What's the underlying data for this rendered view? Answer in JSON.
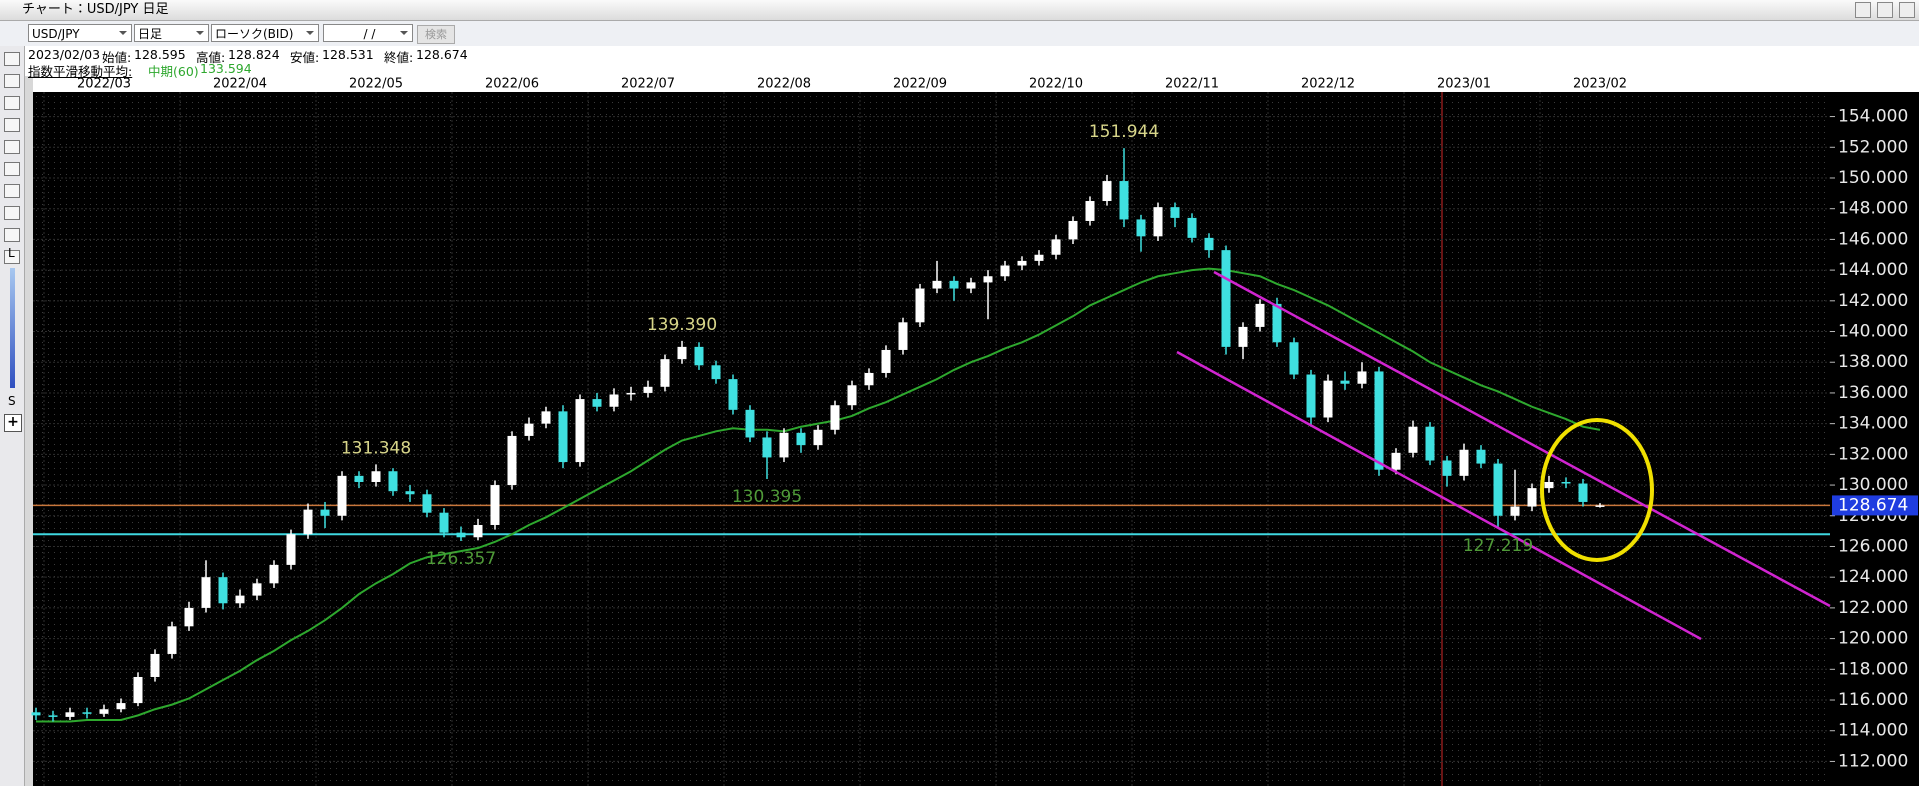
{
  "window": {
    "title": "チャート：USD/JPY 日足",
    "symbol": "USD/JPY",
    "period": "日足",
    "chart_type": "ローソク(BID)",
    "date_field": "/ /",
    "search": "検索"
  },
  "info": {
    "date": "2023/02/03",
    "open": "始値:",
    "high": "高値:",
    "low": "安値:",
    "close": "終値:",
    "ma_title": "指数平滑移動平均:"
  },
  "toolbar": {
    "long": "L",
    "short": "S"
  },
  "chart_data": {
    "type": "candlestick",
    "categories": [
      null,
      null,
      null,
      null,
      "2022/03",
      null,
      null,
      null,
      null,
      null,
      null,
      null,
      "2022/04",
      null,
      null,
      null,
      null,
      null,
      null,
      null,
      "2022/05",
      null,
      null,
      null,
      null,
      null,
      null,
      null,
      "2022/06",
      null,
      null,
      null,
      null,
      null,
      null,
      null,
      "2022/07",
      null,
      null,
      null,
      null,
      null,
      null,
      null,
      "2022/08",
      null,
      null,
      null,
      null,
      null,
      null,
      null,
      "2022/09",
      null,
      null,
      null,
      null,
      null,
      null,
      null,
      "2022/10",
      null,
      null,
      null,
      null,
      null,
      null,
      null,
      "2022/11",
      null,
      null,
      null,
      null,
      null,
      null,
      null,
      "2022/12",
      null,
      null,
      null,
      null,
      null,
      null,
      null,
      "2023/01",
      null,
      null,
      null,
      null,
      null,
      null,
      null,
      "2023/02"
    ],
    "ohlc": {
      "up_color": "#ffffff",
      "down_color": "#3fe0e0",
      "open": [
        115.2,
        115.0,
        114.9,
        115.2,
        115.1,
        115.4,
        115.8,
        117.5,
        119.0,
        120.8,
        122.0,
        124.0,
        122.3,
        122.8,
        123.6,
        124.8,
        126.8,
        128.4,
        128.0,
        130.6,
        130.2,
        130.9,
        129.6,
        129.4,
        128.2,
        126.9,
        126.6,
        127.4,
        130.0,
        133.2,
        134.0,
        134.8,
        131.5,
        135.6,
        135.1,
        135.9,
        136.0,
        136.4,
        138.2,
        139.0,
        137.8,
        136.9,
        134.9,
        133.1,
        131.8,
        133.4,
        132.6,
        133.6,
        135.2,
        136.5,
        137.3,
        138.8,
        140.6,
        142.8,
        143.3,
        142.8,
        143.2,
        143.6,
        144.3,
        144.6,
        145.0,
        146.0,
        147.2,
        148.5,
        149.8,
        147.3,
        146.2,
        148.1,
        147.4,
        146.1,
        145.3,
        139.0,
        140.3,
        141.8,
        139.3,
        137.2,
        134.4,
        136.8,
        136.6,
        137.4,
        131.0,
        132.1,
        133.8,
        131.6,
        130.6,
        132.3,
        131.4,
        128.0,
        128.6,
        129.8,
        130.2,
        130.1,
        128.595
      ],
      "high": [
        115.5,
        115.3,
        115.5,
        115.5,
        115.7,
        116.1,
        117.8,
        119.3,
        121.1,
        122.4,
        125.1,
        124.3,
        123.2,
        123.9,
        125.1,
        127.1,
        128.8,
        128.9,
        130.9,
        130.9,
        131.348,
        131.1,
        130.0,
        129.7,
        128.5,
        127.3,
        127.8,
        130.3,
        133.5,
        134.4,
        135.1,
        135.2,
        135.9,
        136.0,
        136.3,
        136.4,
        136.8,
        138.5,
        139.39,
        139.3,
        138.1,
        137.2,
        135.2,
        133.5,
        133.7,
        133.7,
        133.9,
        135.5,
        136.8,
        137.6,
        139.1,
        140.9,
        143.1,
        144.6,
        143.6,
        143.5,
        144.0,
        144.6,
        144.9,
        145.3,
        146.3,
        147.5,
        148.8,
        150.2,
        151.944,
        147.6,
        148.4,
        148.4,
        147.7,
        146.4,
        145.6,
        140.6,
        142.1,
        142.2,
        139.6,
        137.5,
        137.2,
        137.4,
        138.0,
        137.7,
        132.4,
        134.2,
        134.1,
        131.9,
        132.7,
        132.6,
        131.7,
        131.0,
        130.1,
        130.6,
        130.5,
        130.4,
        128.824
      ],
      "low": [
        114.7,
        114.6,
        114.7,
        114.8,
        114.9,
        115.2,
        115.6,
        117.2,
        118.7,
        120.5,
        121.7,
        121.9,
        122.0,
        122.5,
        123.3,
        124.5,
        126.5,
        127.2,
        127.7,
        129.8,
        129.9,
        129.3,
        128.9,
        127.9,
        126.6,
        126.357,
        126.4,
        127.1,
        129.7,
        132.9,
        133.7,
        131.1,
        131.2,
        134.8,
        134.8,
        135.5,
        135.7,
        136.1,
        137.9,
        137.5,
        136.6,
        134.6,
        132.8,
        130.395,
        131.5,
        132.1,
        132.3,
        133.3,
        134.9,
        136.2,
        137.0,
        138.5,
        140.3,
        142.5,
        142.0,
        142.5,
        140.8,
        143.3,
        144.0,
        144.3,
        144.7,
        145.7,
        146.9,
        148.2,
        146.8,
        145.2,
        145.9,
        146.8,
        145.8,
        144.8,
        138.5,
        138.2,
        140.0,
        139.0,
        136.9,
        133.8,
        134.1,
        136.2,
        136.3,
        130.6,
        130.7,
        131.8,
        131.3,
        129.9,
        130.3,
        131.1,
        127.219,
        127.7,
        128.3,
        129.5,
        129.8,
        128.6,
        128.531
      ],
      "close": [
        115.0,
        114.9,
        115.2,
        115.1,
        115.4,
        115.8,
        117.5,
        119.0,
        120.8,
        122.0,
        124.0,
        122.3,
        122.8,
        123.6,
        124.8,
        126.8,
        128.4,
        128.0,
        130.6,
        130.2,
        130.9,
        129.6,
        129.4,
        128.2,
        126.9,
        126.6,
        127.4,
        130.0,
        133.2,
        134.0,
        134.8,
        131.5,
        135.6,
        135.1,
        135.9,
        136.0,
        136.4,
        138.2,
        139.0,
        137.8,
        136.9,
        134.9,
        133.1,
        131.8,
        133.4,
        132.6,
        133.6,
        135.2,
        136.5,
        137.3,
        138.8,
        140.6,
        142.8,
        143.3,
        142.8,
        143.2,
        143.6,
        144.3,
        144.6,
        145.0,
        146.0,
        147.2,
        148.5,
        149.8,
        147.3,
        146.2,
        148.1,
        147.4,
        146.1,
        145.3,
        139.0,
        140.3,
        141.8,
        139.3,
        137.2,
        134.4,
        136.8,
        136.6,
        137.4,
        131.0,
        132.1,
        133.8,
        131.6,
        130.6,
        132.3,
        131.4,
        128.0,
        128.6,
        129.8,
        130.2,
        130.1,
        128.9,
        128.674
      ]
    },
    "series": [
      {
        "name": "中期(60)",
        "color": "#2ea82e",
        "values": [
          114.6,
          114.6,
          114.6,
          114.7,
          114.7,
          114.7,
          115.0,
          115.4,
          115.7,
          116.1,
          116.7,
          117.3,
          117.9,
          118.6,
          119.2,
          119.9,
          120.5,
          121.2,
          122.0,
          122.9,
          123.6,
          124.2,
          124.9,
          125.3,
          125.5,
          125.7,
          125.9,
          126.3,
          126.8,
          127.4,
          127.9,
          128.5,
          129.1,
          129.7,
          130.3,
          130.9,
          131.6,
          132.3,
          132.9,
          133.2,
          133.5,
          133.7,
          133.6,
          133.6,
          133.5,
          133.8,
          134.0,
          134.2,
          134.5,
          135.0,
          135.4,
          135.9,
          136.4,
          136.9,
          137.5,
          138.0,
          138.4,
          138.9,
          139.3,
          139.8,
          140.4,
          141.0,
          141.7,
          142.2,
          142.7,
          143.2,
          143.6,
          143.8,
          144.0,
          144.1,
          144.0,
          143.8,
          143.6,
          143.1,
          142.7,
          142.2,
          141.7,
          141.1,
          140.5,
          139.9,
          139.3,
          138.7,
          138.0,
          137.5,
          137.0,
          136.5,
          136.1,
          135.6,
          135.1,
          134.7,
          134.3,
          133.8,
          133.594
        ]
      }
    ],
    "high_marks": {
      "color": "#d8d68a",
      "values": [
        151.944,
        139.39,
        131.348
      ],
      "value_labels": [
        "151.944",
        "139.390",
        "131.348"
      ]
    },
    "low_marks": {
      "color": "#4f9a38",
      "values": [
        126.357,
        130.395,
        127.219
      ],
      "value_labels": [
        "126.357",
        "130.395",
        "127.219"
      ]
    },
    "levels": [
      {
        "value": 126.8,
        "color": "#3fd8e0"
      }
    ],
    "last_price_color": "#c8763a",
    "ylim": [
      110.4,
      155.6
    ],
    "yticks": [
      {
        "value": 112,
        "label": "112.000"
      },
      {
        "value": 114,
        "label": "114.000"
      },
      {
        "value": 116,
        "label": "116.000"
      },
      {
        "value": 118,
        "label": "118.000"
      },
      {
        "value": 120,
        "label": "120.000"
      },
      {
        "value": 122,
        "label": "122.000"
      },
      {
        "value": 124,
        "label": "124.000"
      },
      {
        "value": 126,
        "label": "126.000"
      },
      {
        "value": 128,
        "label": "128.000"
      },
      {
        "value": 130,
        "label": "130.000"
      },
      {
        "value": 132,
        "label": "132.000"
      },
      {
        "value": 134,
        "label": "134.000"
      },
      {
        "value": 136,
        "label": "136.000"
      },
      {
        "value": 138,
        "label": "138.000"
      },
      {
        "value": 140,
        "label": "140.000"
      },
      {
        "value": 142,
        "label": "142.000"
      },
      {
        "value": 144,
        "label": "144.000"
      },
      {
        "value": 146,
        "label": "146.000"
      },
      {
        "value": 148,
        "label": "148.000"
      },
      {
        "value": 150,
        "label": "150.000"
      },
      {
        "value": 152,
        "label": "152.000"
      },
      {
        "value": 154,
        "label": "154.000"
      }
    ],
    "grid": true
  }
}
